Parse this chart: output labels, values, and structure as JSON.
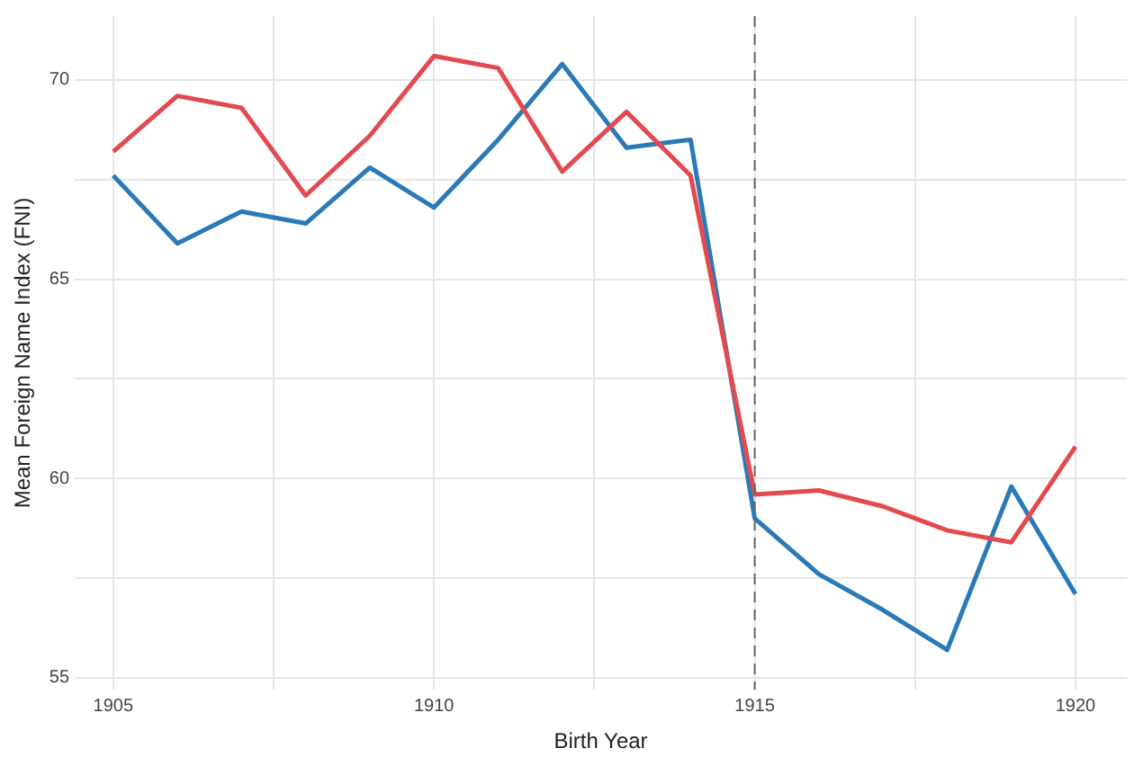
{
  "chart_data": {
    "type": "line",
    "xlabel": "Birth Year",
    "ylabel": "Mean Foreign Name Index (FNI)",
    "x": [
      1905,
      1906,
      1907,
      1908,
      1909,
      1910,
      1911,
      1912,
      1913,
      1914,
      1915,
      1916,
      1917,
      1918,
      1919,
      1920
    ],
    "series": [
      {
        "color": "#e34a4f",
        "values": [
          68.2,
          69.6,
          69.3,
          67.1,
          68.6,
          70.6,
          70.3,
          67.7,
          69.2,
          67.6,
          59.6,
          59.7,
          59.3,
          58.7,
          58.4,
          60.8
        ]
      },
      {
        "color": "#2a7ab8",
        "values": [
          67.6,
          65.9,
          66.7,
          66.4,
          67.8,
          66.8,
          68.5,
          70.4,
          68.3,
          68.5,
          59.0,
          57.6,
          56.7,
          55.7,
          59.8,
          57.1
        ]
      }
    ],
    "xlim": [
      1904.4,
      1920.8
    ],
    "ylim": [
      54.7,
      71.6
    ],
    "xticks": [
      1905,
      {
        "value": 1907.5,
        "label": null
      },
      1910,
      {
        "value": 1912.5,
        "label": null
      },
      1915,
      {
        "value": 1917.5,
        "label": null
      },
      1920
    ],
    "yticks": [
      55,
      {
        "value": 57.5,
        "label": null
      },
      60,
      {
        "value": 62.5,
        "label": null
      },
      65,
      {
        "value": 67.5,
        "label": null
      },
      70
    ],
    "ref_lines": [
      {
        "axis": "x",
        "value": 1915,
        "color": "#666666",
        "line_style": "dashed"
      }
    ],
    "grid": true,
    "legend": false,
    "marker": "none",
    "line_style": "solid"
  }
}
